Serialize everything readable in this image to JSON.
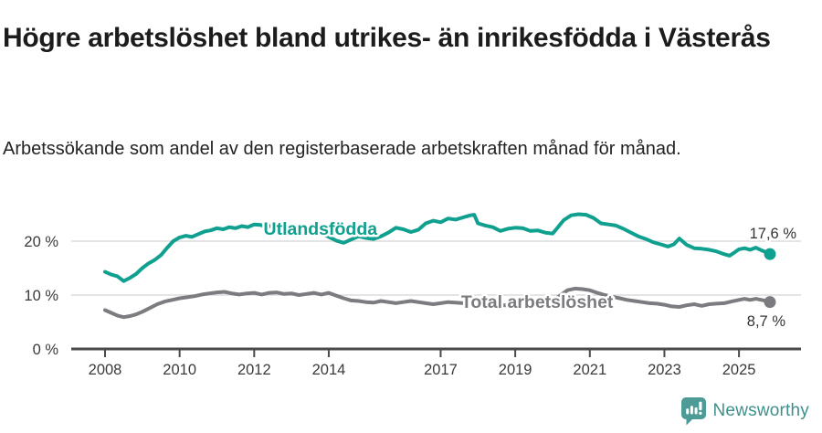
{
  "header": {
    "title": "Högre arbetslöshet bland utrikes- än inrikesfödda i Västerås",
    "subtitle": "Arbetssökande som andel av den registerbaserade arbetskraften månad för månad."
  },
  "footer": {
    "brand": "Newsworthy",
    "logo_icon": "bar-chart-speech-bubble-icon"
  },
  "colors": {
    "foreign_born_line": "#10a08f",
    "total_line": "#7c7c80",
    "gridline": "#dcdcde",
    "axis": "#4a4a4a",
    "axis_text": "#3a3a3a",
    "value_label_text": "#333333",
    "brand_teal": "#4d9b96"
  },
  "chart_data": {
    "type": "line",
    "title": "Högre arbetslöshet bland utrikes- än inrikesfödda i Västerås",
    "subtitle": "Arbetssökande som andel av den registerbaserade arbetskraften månad för månad.",
    "x_axis": {
      "ticks": [
        2008,
        2010,
        2012,
        2014,
        2017,
        2019,
        2021,
        2023,
        2025
      ],
      "tick_labels": [
        "2008",
        "2010",
        "2012",
        "2014",
        "2017",
        "2019",
        "2021",
        "2023",
        "2025"
      ],
      "range": [
        2007.9,
        2026.3
      ]
    },
    "y_axis": {
      "ticks": [
        0,
        10,
        20
      ],
      "tick_labels": [
        "0 %",
        "10 %",
        "20 %"
      ],
      "range": [
        0,
        26
      ],
      "gridlines": true
    },
    "legend_position": "inline-labels",
    "series": [
      {
        "name": "Utlandsfödda",
        "color": "#10a08f",
        "end_value": 17.6,
        "end_label": "17,6 %",
        "points": [
          [
            2008.0,
            14.3
          ],
          [
            2008.17,
            13.8
          ],
          [
            2008.33,
            13.5
          ],
          [
            2008.5,
            12.6
          ],
          [
            2008.67,
            13.2
          ],
          [
            2008.83,
            13.9
          ],
          [
            2009.0,
            15.0
          ],
          [
            2009.17,
            15.9
          ],
          [
            2009.33,
            16.5
          ],
          [
            2009.5,
            17.4
          ],
          [
            2009.67,
            18.8
          ],
          [
            2009.83,
            20.0
          ],
          [
            2010.0,
            20.7
          ],
          [
            2010.17,
            21.0
          ],
          [
            2010.33,
            20.8
          ],
          [
            2010.5,
            21.3
          ],
          [
            2010.67,
            21.8
          ],
          [
            2010.83,
            22.0
          ],
          [
            2011.0,
            22.4
          ],
          [
            2011.17,
            22.2
          ],
          [
            2011.33,
            22.6
          ],
          [
            2011.5,
            22.4
          ],
          [
            2011.67,
            22.8
          ],
          [
            2011.83,
            22.6
          ],
          [
            2012.0,
            23.1
          ],
          [
            2012.17,
            23.0
          ],
          [
            2012.33,
            22.7
          ],
          [
            2012.5,
            22.9
          ],
          [
            2012.67,
            22.6
          ],
          [
            2012.83,
            22.8
          ],
          [
            2013.0,
            22.9
          ],
          [
            2013.25,
            22.6
          ],
          [
            2013.5,
            22.3
          ],
          [
            2013.75,
            21.6
          ],
          [
            2014.0,
            20.8
          ],
          [
            2014.2,
            20.1
          ],
          [
            2014.4,
            19.7
          ],
          [
            2014.6,
            20.3
          ],
          [
            2014.8,
            20.9
          ],
          [
            2015.0,
            20.6
          ],
          [
            2015.2,
            20.4
          ],
          [
            2015.4,
            20.9
          ],
          [
            2015.6,
            21.6
          ],
          [
            2015.8,
            22.5
          ],
          [
            2016.0,
            22.2
          ],
          [
            2016.2,
            21.7
          ],
          [
            2016.4,
            22.1
          ],
          [
            2016.6,
            23.3
          ],
          [
            2016.8,
            23.8
          ],
          [
            2017.0,
            23.5
          ],
          [
            2017.2,
            24.2
          ],
          [
            2017.4,
            24.0
          ],
          [
            2017.6,
            24.4
          ],
          [
            2017.8,
            24.8
          ],
          [
            2017.9,
            24.9
          ],
          [
            2018.0,
            23.3
          ],
          [
            2018.2,
            22.9
          ],
          [
            2018.4,
            22.6
          ],
          [
            2018.6,
            21.9
          ],
          [
            2018.8,
            22.3
          ],
          [
            2019.0,
            22.5
          ],
          [
            2019.2,
            22.4
          ],
          [
            2019.4,
            21.9
          ],
          [
            2019.6,
            22.0
          ],
          [
            2019.8,
            21.6
          ],
          [
            2020.0,
            21.4
          ],
          [
            2020.1,
            22.2
          ],
          [
            2020.3,
            23.9
          ],
          [
            2020.5,
            24.8
          ],
          [
            2020.7,
            25.0
          ],
          [
            2020.9,
            24.9
          ],
          [
            2021.1,
            24.3
          ],
          [
            2021.3,
            23.3
          ],
          [
            2021.5,
            23.1
          ],
          [
            2021.7,
            22.9
          ],
          [
            2021.9,
            22.3
          ],
          [
            2022.1,
            21.6
          ],
          [
            2022.3,
            20.9
          ],
          [
            2022.5,
            20.4
          ],
          [
            2022.7,
            19.8
          ],
          [
            2022.9,
            19.4
          ],
          [
            2023.1,
            19.0
          ],
          [
            2023.25,
            19.4
          ],
          [
            2023.4,
            20.5
          ],
          [
            2023.6,
            19.3
          ],
          [
            2023.8,
            18.7
          ],
          [
            2024.0,
            18.6
          ],
          [
            2024.2,
            18.4
          ],
          [
            2024.4,
            18.1
          ],
          [
            2024.6,
            17.6
          ],
          [
            2024.75,
            17.3
          ],
          [
            2024.9,
            18.0
          ],
          [
            2025.0,
            18.5
          ],
          [
            2025.15,
            18.7
          ],
          [
            2025.3,
            18.4
          ],
          [
            2025.45,
            18.8
          ],
          [
            2025.6,
            18.3
          ],
          [
            2025.75,
            17.9
          ],
          [
            2025.83,
            17.6
          ]
        ]
      },
      {
        "name": "Total arbetslöshet",
        "color": "#7c7c80",
        "end_value": 8.7,
        "end_label": "8,7 %",
        "points": [
          [
            2008.0,
            7.2
          ],
          [
            2008.17,
            6.7
          ],
          [
            2008.33,
            6.2
          ],
          [
            2008.5,
            5.9
          ],
          [
            2008.67,
            6.1
          ],
          [
            2008.83,
            6.4
          ],
          [
            2009.0,
            6.9
          ],
          [
            2009.2,
            7.6
          ],
          [
            2009.4,
            8.3
          ],
          [
            2009.6,
            8.8
          ],
          [
            2009.8,
            9.1
          ],
          [
            2010.0,
            9.4
          ],
          [
            2010.2,
            9.6
          ],
          [
            2010.4,
            9.8
          ],
          [
            2010.6,
            10.1
          ],
          [
            2010.8,
            10.3
          ],
          [
            2011.0,
            10.5
          ],
          [
            2011.2,
            10.6
          ],
          [
            2011.4,
            10.3
          ],
          [
            2011.6,
            10.1
          ],
          [
            2011.8,
            10.3
          ],
          [
            2012.0,
            10.4
          ],
          [
            2012.2,
            10.1
          ],
          [
            2012.4,
            10.4
          ],
          [
            2012.6,
            10.5
          ],
          [
            2012.8,
            10.2
          ],
          [
            2013.0,
            10.3
          ],
          [
            2013.2,
            10.0
          ],
          [
            2013.4,
            10.2
          ],
          [
            2013.6,
            10.4
          ],
          [
            2013.8,
            10.1
          ],
          [
            2014.0,
            10.4
          ],
          [
            2014.2,
            9.9
          ],
          [
            2014.4,
            9.4
          ],
          [
            2014.6,
            9.0
          ],
          [
            2014.8,
            8.9
          ],
          [
            2015.0,
            8.7
          ],
          [
            2015.2,
            8.6
          ],
          [
            2015.4,
            8.9
          ],
          [
            2015.6,
            8.7
          ],
          [
            2015.8,
            8.5
          ],
          [
            2016.0,
            8.7
          ],
          [
            2016.2,
            8.9
          ],
          [
            2016.4,
            8.7
          ],
          [
            2016.6,
            8.5
          ],
          [
            2016.8,
            8.3
          ],
          [
            2017.0,
            8.5
          ],
          [
            2017.2,
            8.7
          ],
          [
            2017.4,
            8.6
          ],
          [
            2017.6,
            8.5
          ],
          [
            2017.8,
            8.4
          ],
          [
            2018.0,
            8.3
          ],
          [
            2018.25,
            8.1
          ],
          [
            2018.5,
            8.2
          ],
          [
            2018.75,
            8.1
          ],
          [
            2019.0,
            8.2
          ],
          [
            2019.25,
            8.3
          ],
          [
            2019.5,
            8.4
          ],
          [
            2019.75,
            8.6
          ],
          [
            2020.0,
            8.9
          ],
          [
            2020.2,
            9.9
          ],
          [
            2020.4,
            10.9
          ],
          [
            2020.6,
            11.2
          ],
          [
            2020.8,
            11.1
          ],
          [
            2021.0,
            10.9
          ],
          [
            2021.2,
            10.4
          ],
          [
            2021.4,
            10.0
          ],
          [
            2021.6,
            9.7
          ],
          [
            2021.8,
            9.4
          ],
          [
            2022.0,
            9.1
          ],
          [
            2022.2,
            8.9
          ],
          [
            2022.4,
            8.7
          ],
          [
            2022.6,
            8.5
          ],
          [
            2022.8,
            8.4
          ],
          [
            2023.0,
            8.2
          ],
          [
            2023.2,
            7.9
          ],
          [
            2023.4,
            7.8
          ],
          [
            2023.6,
            8.1
          ],
          [
            2023.8,
            8.3
          ],
          [
            2024.0,
            8.0
          ],
          [
            2024.2,
            8.3
          ],
          [
            2024.4,
            8.4
          ],
          [
            2024.6,
            8.5
          ],
          [
            2024.8,
            8.8
          ],
          [
            2025.0,
            9.1
          ],
          [
            2025.15,
            9.3
          ],
          [
            2025.3,
            9.1
          ],
          [
            2025.45,
            9.3
          ],
          [
            2025.6,
            9.1
          ],
          [
            2025.75,
            8.9
          ],
          [
            2025.83,
            8.7
          ]
        ]
      }
    ]
  }
}
